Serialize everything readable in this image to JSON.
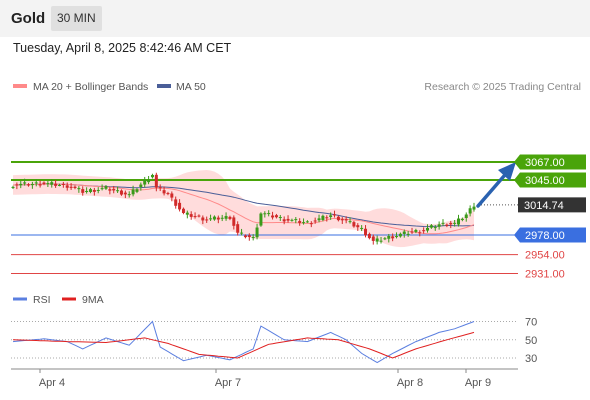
{
  "header": {
    "title": "Gold",
    "interval": "30 MIN"
  },
  "datetime": "Tuesday, April 8, 2025 8:42:46 AM CET",
  "legend": {
    "ma20": "MA 20 + Bollinger Bands",
    "ma50": "MA 50",
    "credit": "Research © 2025 Trading Central"
  },
  "rsi_legend": {
    "rsi": "RSI",
    "ma": "9MA"
  },
  "colors": {
    "resistance": "#4aa40a",
    "support_pivot": "#3a6fe0",
    "support": "#e04545",
    "bollinger": "#ffd0d0",
    "ma20": "#ff8a8a",
    "ma50": "#4a5e98",
    "bull": "#3a9a1a",
    "bear": "#d12a2a",
    "arrow": "#2a62b0",
    "last_price": "#333333",
    "rsi_line": "#5b7fe0",
    "rsi_ma": "#e02020"
  },
  "levels": [
    {
      "value": 3067.0,
      "label": "3067.00",
      "kind": "resistance"
    },
    {
      "value": 3045.0,
      "label": "3045.00",
      "kind": "resistance"
    },
    {
      "value": 3014.74,
      "label": "3014.74",
      "kind": "last"
    },
    {
      "value": 2978.0,
      "label": "2978.00",
      "kind": "pivot"
    },
    {
      "value": 2954.0,
      "label": "2954.00",
      "kind": "support"
    },
    {
      "value": 2931.0,
      "label": "2931.00",
      "kind": "support"
    }
  ],
  "chart_data": {
    "type": "candlestick",
    "x_tick_labels": [
      "Apr 4",
      "Apr 7",
      "Apr 8",
      "Apr 9"
    ],
    "price_series_anchors": [
      {
        "t": 0,
        "close": 3039
      },
      {
        "t": 8,
        "close": 3041
      },
      {
        "t": 14,
        "close": 3038
      },
      {
        "t": 18,
        "close": 3031
      },
      {
        "t": 24,
        "close": 3035
      },
      {
        "t": 30,
        "close": 3027
      },
      {
        "t": 36,
        "close": 3052
      },
      {
        "t": 37,
        "close": 3035
      },
      {
        "t": 40,
        "close": 3028
      },
      {
        "t": 44,
        "close": 3004
      },
      {
        "t": 50,
        "close": 2997
      },
      {
        "t": 56,
        "close": 3000
      },
      {
        "t": 58,
        "close": 2980
      },
      {
        "t": 62,
        "close": 2974
      },
      {
        "t": 64,
        "close": 3005
      },
      {
        "t": 70,
        "close": 2997
      },
      {
        "t": 76,
        "close": 2993
      },
      {
        "t": 82,
        "close": 3002
      },
      {
        "t": 86,
        "close": 2995
      },
      {
        "t": 90,
        "close": 2985
      },
      {
        "t": 93,
        "close": 2970
      },
      {
        "t": 96,
        "close": 2974
      },
      {
        "t": 102,
        "close": 2981
      },
      {
        "t": 106,
        "close": 2984
      },
      {
        "t": 110,
        "close": 2991
      },
      {
        "t": 114,
        "close": 2992
      },
      {
        "t": 117,
        "close": 3003
      },
      {
        "t": 119,
        "close": 3015
      }
    ],
    "rsi_levels": [
      70,
      50,
      30
    ],
    "rsi_anchors": [
      {
        "t": 0,
        "v": 48
      },
      {
        "t": 8,
        "v": 51
      },
      {
        "t": 14,
        "v": 48
      },
      {
        "t": 18,
        "v": 40
      },
      {
        "t": 24,
        "v": 52
      },
      {
        "t": 30,
        "v": 44
      },
      {
        "t": 36,
        "v": 70
      },
      {
        "t": 38,
        "v": 42
      },
      {
        "t": 44,
        "v": 27
      },
      {
        "t": 50,
        "v": 33
      },
      {
        "t": 56,
        "v": 28
      },
      {
        "t": 62,
        "v": 40
      },
      {
        "t": 64,
        "v": 65
      },
      {
        "t": 70,
        "v": 50
      },
      {
        "t": 76,
        "v": 48
      },
      {
        "t": 82,
        "v": 58
      },
      {
        "t": 86,
        "v": 50
      },
      {
        "t": 90,
        "v": 35
      },
      {
        "t": 94,
        "v": 25
      },
      {
        "t": 98,
        "v": 35
      },
      {
        "t": 104,
        "v": 48
      },
      {
        "t": 110,
        "v": 58
      },
      {
        "t": 114,
        "v": 62
      },
      {
        "t": 119,
        "v": 70
      }
    ],
    "rsi_ma_anchors": [
      {
        "t": 0,
        "v": 50
      },
      {
        "t": 14,
        "v": 48
      },
      {
        "t": 24,
        "v": 47
      },
      {
        "t": 34,
        "v": 52
      },
      {
        "t": 40,
        "v": 46
      },
      {
        "t": 48,
        "v": 34
      },
      {
        "t": 58,
        "v": 30
      },
      {
        "t": 66,
        "v": 45
      },
      {
        "t": 76,
        "v": 52
      },
      {
        "t": 84,
        "v": 50
      },
      {
        "t": 92,
        "v": 40
      },
      {
        "t": 98,
        "v": 30
      },
      {
        "t": 104,
        "v": 40
      },
      {
        "t": 112,
        "v": 50
      },
      {
        "t": 119,
        "v": 58
      }
    ]
  }
}
